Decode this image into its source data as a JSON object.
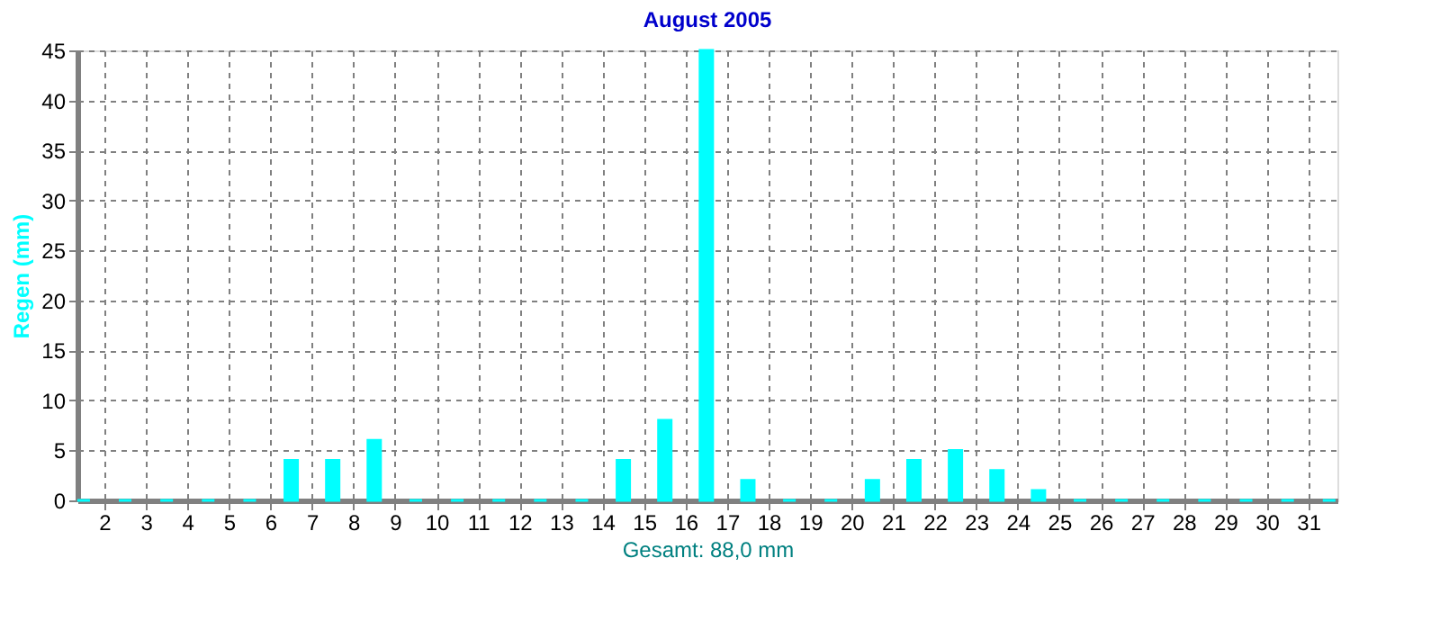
{
  "chart_data": {
    "type": "bar",
    "title": "August 2005",
    "ylabel": "Regen  (mm)",
    "xlabel": "Gesamt: 88,0 mm",
    "x": [
      1.5,
      2.5,
      3.5,
      4.5,
      5.5,
      6.5,
      7.5,
      8.5,
      9.5,
      10.5,
      11.5,
      12.5,
      13.5,
      14.5,
      15.5,
      16.5,
      17.5,
      18.5,
      19.5,
      20.5,
      21.5,
      22.5,
      23.5,
      24.5,
      25.5,
      26.5,
      27.5,
      28.5,
      29.5,
      30.5,
      31.5
    ],
    "values": [
      0,
      0,
      0,
      0,
      0,
      4,
      4,
      6,
      0,
      0,
      0,
      0,
      0,
      4,
      8,
      45,
      2,
      0,
      0,
      2,
      4,
      5,
      3,
      1,
      0,
      0,
      0,
      0,
      0,
      0,
      0
    ],
    "color": "#00ffff",
    "xlim": [
      1.35,
      31.7
    ],
    "xticks": [
      2,
      3,
      4,
      5,
      6,
      7,
      8,
      9,
      10,
      11,
      12,
      13,
      14,
      15,
      16,
      17,
      18,
      19,
      20,
      21,
      22,
      23,
      24,
      25,
      26,
      27,
      28,
      29,
      30,
      31
    ],
    "ylim": [
      0,
      45
    ],
    "yticks": [
      0,
      5,
      10,
      15,
      20,
      25,
      30,
      35,
      40,
      45
    ],
    "grid": true
  }
}
